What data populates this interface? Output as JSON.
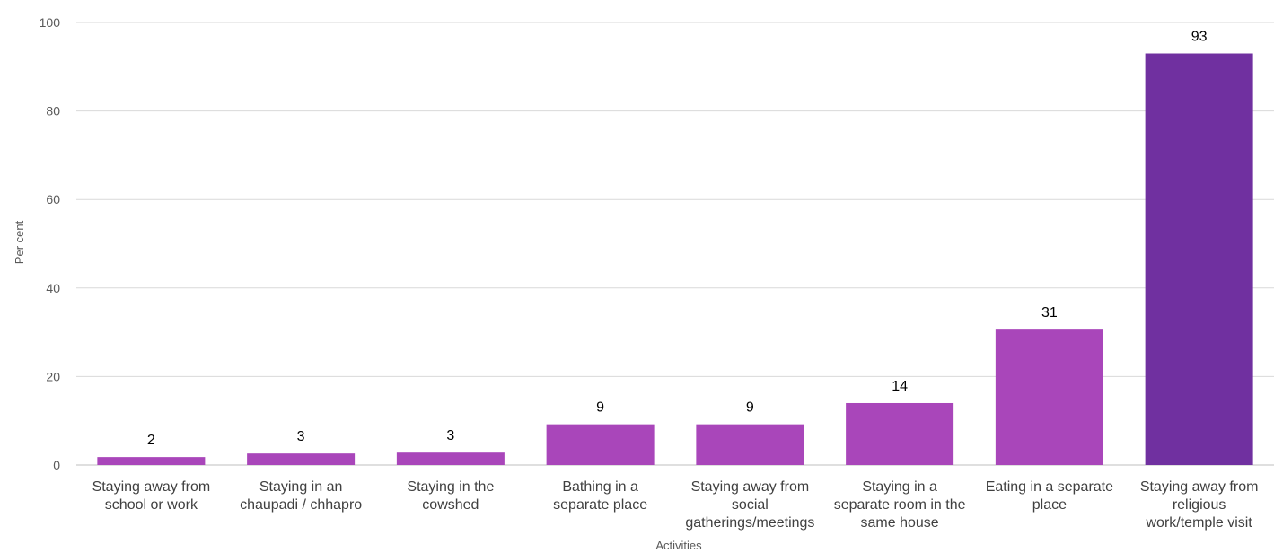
{
  "chart_data": {
    "type": "bar",
    "title": "",
    "xlabel": "Activities",
    "ylabel": "Per cent",
    "ylim": [
      0,
      100
    ],
    "yticks": [
      0,
      20,
      40,
      60,
      80,
      100
    ],
    "grid": true,
    "categories": [
      [
        "Staying away from",
        "school or work"
      ],
      [
        "Staying in an",
        "chaupadi / chhapro"
      ],
      [
        "Staying in the",
        "cowshed"
      ],
      [
        "Bathing in a",
        "separate place"
      ],
      [
        "Staying away from",
        "social",
        "gatherings/meetings"
      ],
      [
        "Staying in a",
        "separate room in the",
        "same house"
      ],
      [
        "Eating in a separate",
        "place"
      ],
      [
        "Staying away from",
        "religious",
        "work/temple visit"
      ]
    ],
    "values": [
      1.8,
      2.6,
      2.8,
      9.2,
      9.2,
      14.0,
      30.6,
      93.0
    ],
    "data_labels": [
      "2",
      "3",
      "3",
      "9",
      "9",
      "14",
      "31",
      "93"
    ],
    "colors": [
      "#a946ba",
      "#a946ba",
      "#a946ba",
      "#a946ba",
      "#a946ba",
      "#a946ba",
      "#a946ba",
      "#7030a0"
    ]
  }
}
